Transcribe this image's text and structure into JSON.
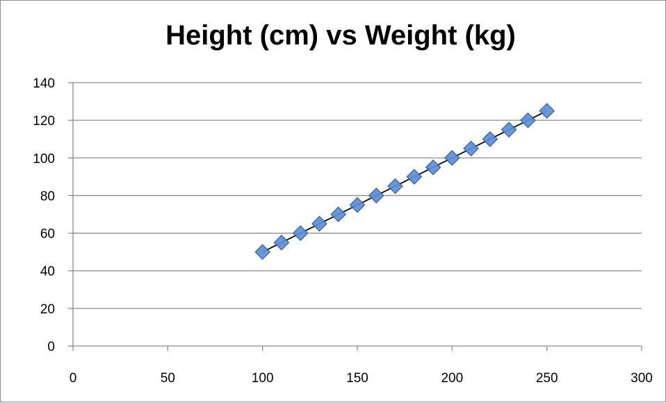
{
  "chart_data": {
    "type": "scatter",
    "title": "Height (cm) vs Weight (kg)",
    "xlabel": "",
    "ylabel": "",
    "xlim": [
      0,
      300
    ],
    "ylim": [
      0,
      140
    ],
    "x_ticks": [
      0,
      50,
      100,
      150,
      200,
      250,
      300
    ],
    "y_ticks": [
      0,
      20,
      40,
      60,
      80,
      100,
      120,
      140
    ],
    "x_tick_labels": [
      "0",
      "50",
      "100",
      "150",
      "200",
      "250",
      "300"
    ],
    "y_tick_labels": [
      "0",
      "20",
      "40",
      "60",
      "80",
      "100",
      "120",
      "140"
    ],
    "grid": "horizontal",
    "legend": "none",
    "marker": "diamond",
    "trendline": true,
    "colors": {
      "marker_fill": "#5b8fd6",
      "marker_stroke": "#2f5f9e",
      "trendline": "#000000",
      "gridline": "#8c8c8c",
      "axis": "#8c8c8c"
    },
    "series": [
      {
        "x": [
          100,
          110,
          120,
          130,
          140,
          150,
          160,
          170,
          180,
          190,
          200,
          210,
          220,
          230,
          240,
          250
        ],
        "y": [
          50,
          55,
          60,
          65,
          70,
          75,
          80,
          85,
          90,
          95,
          100,
          105,
          110,
          115,
          120,
          125
        ]
      }
    ]
  }
}
